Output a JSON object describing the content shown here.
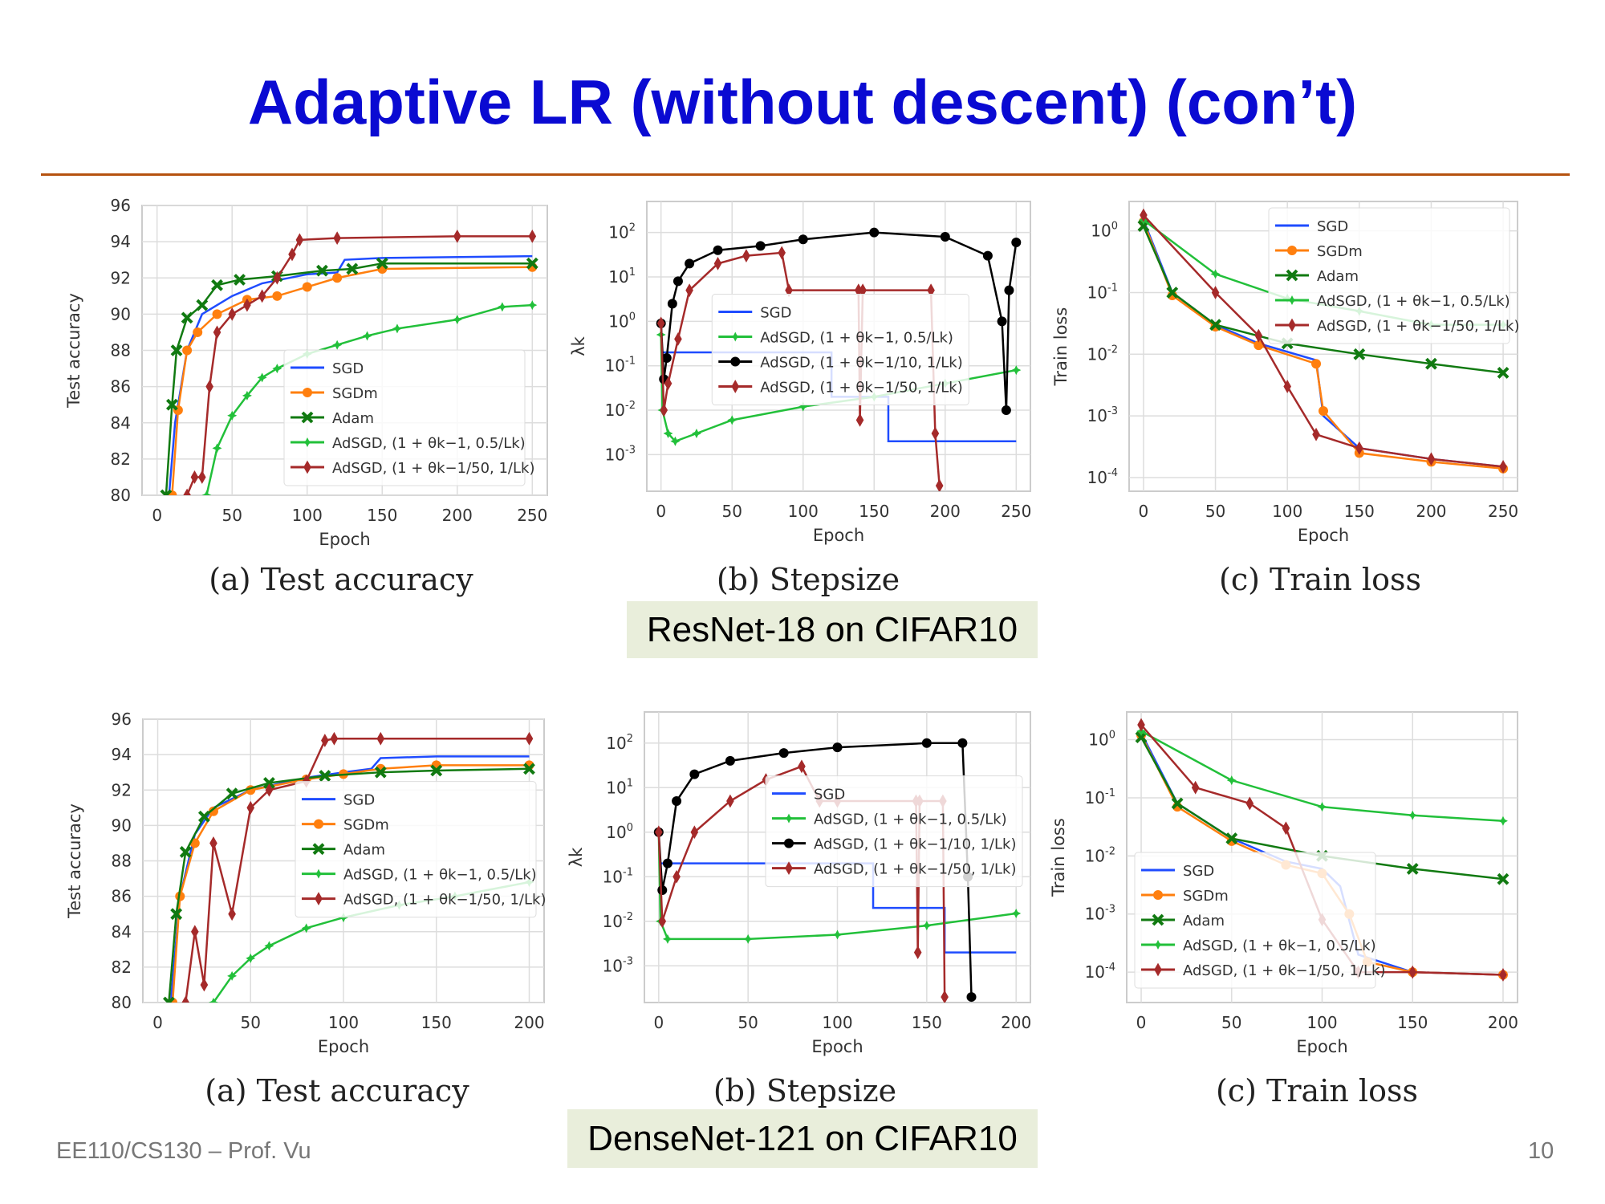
{
  "slide": {
    "title": "Adaptive LR (without descent) (con’t)",
    "footer": "EE110/CS130 – Prof. Vu",
    "page_number": "10",
    "row_labels": [
      "ResNet-18 on CIFAR10",
      "DenseNet-121 on CIFAR10"
    ],
    "captions": [
      "(a) Test accuracy",
      "(b) Stepsize",
      "(c) Train loss",
      "(a) Test accuracy",
      "(b) Stepsize",
      "(c) Train loss"
    ]
  },
  "colors": {
    "title": "#0a0ad2",
    "rule": "#b5520f",
    "label_box": "#e9eedb",
    "SGD": "#1f4cff",
    "SGDm": "#ff7f0e",
    "Adam": "#117a11",
    "AdSGD_05": "#22c03a",
    "AdSGD_10": "#000000",
    "AdSGD_50": "#a52a2a"
  },
  "chart_data": [
    {
      "type": "line",
      "caption": "(a) Test accuracy",
      "xlabel": "Epoch",
      "ylabel": "Test accuracy",
      "xlim": [
        -10,
        260
      ],
      "ylim": [
        80,
        96
      ],
      "xticks": [
        0,
        50,
        100,
        150,
        200,
        250
      ],
      "yticks": [
        80,
        82,
        84,
        86,
        88,
        90,
        92,
        94,
        96
      ],
      "log": false,
      "grid": true,
      "legend": "bottom-right",
      "series": [
        {
          "name": "SGD",
          "color": "#1f4cff",
          "marker": "none",
          "x": [
            8,
            12,
            20,
            30,
            50,
            70,
            100,
            120,
            125,
            150,
            250
          ],
          "y": [
            80,
            84,
            88,
            90,
            91,
            91.7,
            92.2,
            92.3,
            93,
            93.1,
            93.2
          ]
        },
        {
          "name": "SGDm",
          "color": "#ff7f0e",
          "marker": "circle",
          "x": [
            10,
            14,
            20,
            27,
            40,
            60,
            80,
            100,
            120,
            150,
            250
          ],
          "y": [
            80,
            84.7,
            88,
            89,
            90,
            90.8,
            91,
            91.5,
            92,
            92.5,
            92.6
          ]
        },
        {
          "name": "Adam",
          "color": "#117a11",
          "marker": "x",
          "x": [
            6,
            10,
            13,
            20,
            30,
            40,
            55,
            80,
            110,
            130,
            150,
            250
          ],
          "y": [
            80,
            85,
            88,
            89.8,
            90.5,
            91.6,
            91.9,
            92.1,
            92.4,
            92.5,
            92.8,
            92.8
          ]
        },
        {
          "name": "AdSGD, (1 + θk−1, 0.5/Lk)",
          "color": "#22c03a",
          "marker": "star",
          "x": [
            33,
            40,
            50,
            60,
            70,
            80,
            100,
            120,
            140,
            160,
            200,
            230,
            250
          ],
          "y": [
            80,
            82.6,
            84.4,
            85.5,
            86.5,
            87,
            87.8,
            88.3,
            88.8,
            89.2,
            89.7,
            90.4,
            90.5
          ]
        },
        {
          "name": "AdSGD, (1 + θk−1/50, 1/Lk)",
          "color": "#a52a2a",
          "marker": "diamond",
          "x": [
            20,
            25,
            30,
            35,
            40,
            50,
            60,
            70,
            80,
            90,
            95,
            120,
            200,
            250
          ],
          "y": [
            80,
            81,
            81,
            86,
            89,
            90,
            90.5,
            91,
            92,
            93.3,
            94.1,
            94.2,
            94.3,
            94.3
          ]
        }
      ]
    },
    {
      "type": "line",
      "caption": "(b) Stepsize",
      "xlabel": "Epoch",
      "ylabel": "λk",
      "xlim": [
        -10,
        260
      ],
      "ylim": [
        0.00015,
        500
      ],
      "xticks": [
        0,
        50,
        100,
        150,
        200,
        250
      ],
      "yticks": [
        0.001,
        0.01,
        0.1,
        1,
        10,
        100
      ],
      "log": true,
      "grid": true,
      "legend": "center",
      "series": [
        {
          "name": "SGD",
          "color": "#1f4cff",
          "marker": "none",
          "x": [
            0,
            120,
            120,
            160,
            160,
            250
          ],
          "y": [
            0.2,
            0.2,
            0.02,
            0.02,
            0.002,
            0.002
          ]
        },
        {
          "name": "AdSGD, (1 + θk−1, 0.5/Lk)",
          "color": "#22c03a",
          "marker": "star",
          "x": [
            0,
            1,
            5,
            10,
            25,
            50,
            100,
            150,
            200,
            250
          ],
          "y": [
            0.5,
            0.01,
            0.003,
            0.002,
            0.003,
            0.006,
            0.012,
            0.02,
            0.04,
            0.08
          ]
        },
        {
          "name": "AdSGD, (1 + θk−1/10, 1/Lk)",
          "color": "#000000",
          "marker": "circle",
          "x": [
            0,
            2,
            4,
            8,
            12,
            20,
            40,
            70,
            100,
            150,
            200,
            230,
            240,
            243,
            245,
            250
          ],
          "y": [
            0.9,
            0.05,
            0.15,
            2.5,
            8,
            20,
            40,
            50,
            70,
            100,
            80,
            30,
            1,
            0.01,
            5,
            60
          ]
        },
        {
          "name": "AdSGD, (1 + θk−1/50, 1/Lk)",
          "color": "#a52a2a",
          "marker": "diamond",
          "x": [
            0,
            2,
            5,
            12,
            20,
            40,
            60,
            85,
            90,
            139,
            140,
            142,
            190,
            193,
            196
          ],
          "y": [
            0.9,
            0.01,
            0.04,
            0.4,
            5,
            20,
            30,
            35,
            5,
            5,
            0.006,
            5,
            5,
            0.003,
            0.0002
          ]
        }
      ]
    },
    {
      "type": "line",
      "caption": "(c) Train loss",
      "xlabel": "Epoch",
      "ylabel": "Train loss",
      "xlim": [
        -10,
        260
      ],
      "ylim": [
        6e-05,
        3
      ],
      "xticks": [
        0,
        50,
        100,
        150,
        200,
        250
      ],
      "yticks": [
        0.0001,
        0.001,
        0.01,
        0.1,
        1
      ],
      "log": true,
      "grid": true,
      "legend": "top-right",
      "series": [
        {
          "name": "SGD",
          "color": "#1f4cff",
          "marker": "none",
          "x": [
            0,
            20,
            50,
            80,
            120,
            125,
            150,
            200,
            250
          ],
          "y": [
            1.5,
            0.1,
            0.03,
            0.015,
            0.008,
            0.001,
            0.0003,
            0.0002,
            0.00015
          ]
        },
        {
          "name": "SGDm",
          "color": "#ff7f0e",
          "marker": "circle",
          "x": [
            0,
            20,
            50,
            80,
            120,
            125,
            150,
            200,
            250
          ],
          "y": [
            1.4,
            0.09,
            0.028,
            0.014,
            0.007,
            0.0012,
            0.00025,
            0.00018,
            0.00014
          ]
        },
        {
          "name": "Adam",
          "color": "#117a11",
          "marker": "x",
          "x": [
            0,
            20,
            50,
            100,
            150,
            200,
            250
          ],
          "y": [
            1.2,
            0.1,
            0.03,
            0.015,
            0.01,
            0.007,
            0.005
          ]
        },
        {
          "name": "AdSGD, (1 + θk−1, 0.5/Lk)",
          "color": "#22c03a",
          "marker": "star",
          "x": [
            0,
            50,
            100,
            150,
            200,
            250
          ],
          "y": [
            1.5,
            0.2,
            0.08,
            0.05,
            0.03,
            0.03
          ]
        },
        {
          "name": "AdSGD, (1 + θk−1/50, 1/Lk)",
          "color": "#a52a2a",
          "marker": "diamond",
          "x": [
            0,
            50,
            80,
            100,
            120,
            150,
            200,
            250
          ],
          "y": [
            1.8,
            0.1,
            0.02,
            0.003,
            0.0005,
            0.0003,
            0.0002,
            0.00015
          ]
        }
      ]
    },
    {
      "type": "line",
      "caption": "(a) Test accuracy",
      "xlabel": "Epoch",
      "ylabel": "Test accuracy",
      "xlim": [
        -8,
        208
      ],
      "ylim": [
        80,
        96
      ],
      "xticks": [
        0,
        50,
        100,
        150,
        200
      ],
      "yticks": [
        80,
        82,
        84,
        86,
        88,
        90,
        92,
        94,
        96
      ],
      "log": false,
      "grid": true,
      "legend": "center-right",
      "series": [
        {
          "name": "SGD",
          "color": "#1f4cff",
          "marker": "none",
          "x": [
            7,
            12,
            20,
            30,
            50,
            80,
            100,
            115,
            120,
            150,
            200
          ],
          "y": [
            80,
            86,
            89.5,
            91,
            92,
            92.7,
            93,
            93.2,
            93.8,
            93.9,
            93.9
          ]
        },
        {
          "name": "SGDm",
          "color": "#ff7f0e",
          "marker": "circle",
          "x": [
            8,
            12,
            20,
            30,
            50,
            80,
            100,
            120,
            150,
            200
          ],
          "y": [
            80,
            86,
            89,
            90.8,
            92,
            92.6,
            92.9,
            93.2,
            93.4,
            93.4
          ]
        },
        {
          "name": "Adam",
          "color": "#117a11",
          "marker": "x",
          "x": [
            6,
            10,
            15,
            25,
            40,
            60,
            90,
            120,
            150,
            200
          ],
          "y": [
            80,
            85,
            88.5,
            90.5,
            91.8,
            92.4,
            92.8,
            93,
            93.1,
            93.2
          ]
        },
        {
          "name": "AdSGD, (1 + θk−1, 0.5/Lk)",
          "color": "#22c03a",
          "marker": "star",
          "x": [
            30,
            40,
            50,
            60,
            80,
            100,
            130,
            160,
            200
          ],
          "y": [
            80,
            81.5,
            82.5,
            83.2,
            84.2,
            84.8,
            85.5,
            86,
            86.8
          ]
        },
        {
          "name": "AdSGD, (1 + θk−1/50, 1/Lk)",
          "color": "#a52a2a",
          "marker": "diamond",
          "x": [
            15,
            20,
            25,
            30,
            40,
            50,
            60,
            80,
            90,
            95,
            120,
            200
          ],
          "y": [
            80,
            84,
            81,
            89,
            85,
            91,
            92,
            92.5,
            94.8,
            94.9,
            94.9,
            94.9
          ]
        }
      ]
    },
    {
      "type": "line",
      "caption": "(b) Stepsize",
      "xlabel": "Epoch",
      "ylabel": "λk",
      "xlim": [
        -8,
        208
      ],
      "ylim": [
        0.00015,
        500
      ],
      "xticks": [
        0,
        50,
        100,
        150,
        200
      ],
      "yticks": [
        0.001,
        0.01,
        0.1,
        1,
        10,
        100
      ],
      "log": true,
      "grid": true,
      "legend": "center-right",
      "series": [
        {
          "name": "SGD",
          "color": "#1f4cff",
          "marker": "none",
          "x": [
            0,
            120,
            120,
            160,
            160,
            200
          ],
          "y": [
            0.2,
            0.2,
            0.02,
            0.02,
            0.002,
            0.002
          ]
        },
        {
          "name": "AdSGD, (1 + θk−1, 0.5/Lk)",
          "color": "#22c03a",
          "marker": "star",
          "x": [
            0,
            1,
            5,
            50,
            100,
            150,
            200
          ],
          "y": [
            1,
            0.01,
            0.004,
            0.004,
            0.005,
            0.008,
            0.015
          ]
        },
        {
          "name": "AdSGD, (1 + θk−1/10, 1/Lk)",
          "color": "#000000",
          "marker": "circle",
          "x": [
            0,
            2,
            5,
            10,
            20,
            40,
            70,
            100,
            150,
            170,
            173,
            175
          ],
          "y": [
            1,
            0.05,
            0.2,
            5,
            20,
            40,
            60,
            80,
            100,
            100,
            0.1,
            0.0002
          ]
        },
        {
          "name": "AdSGD, (1 + θk−1/50, 1/Lk)",
          "color": "#a52a2a",
          "marker": "diamond",
          "x": [
            0,
            2,
            10,
            20,
            40,
            60,
            80,
            90,
            100,
            144,
            145,
            146,
            159,
            160
          ],
          "y": [
            1,
            0.01,
            0.1,
            1,
            5,
            15,
            30,
            5,
            5,
            5,
            0.002,
            5,
            5,
            0.0002
          ]
        }
      ]
    },
    {
      "type": "line",
      "caption": "(c) Train loss",
      "xlabel": "Epoch",
      "ylabel": "Train loss",
      "xlim": [
        -8,
        208
      ],
      "ylim": [
        3e-05,
        3
      ],
      "xticks": [
        0,
        50,
        100,
        150,
        200
      ],
      "yticks": [
        0.0001,
        0.001,
        0.01,
        0.1,
        1
      ],
      "log": true,
      "grid": true,
      "legend": "bottom-left",
      "series": [
        {
          "name": "SGD",
          "color": "#1f4cff",
          "marker": "none",
          "x": [
            0,
            20,
            50,
            80,
            100,
            110,
            120,
            150,
            200
          ],
          "y": [
            1.3,
            0.08,
            0.02,
            0.008,
            0.006,
            0.003,
            0.0002,
            0.0001,
            9e-05
          ]
        },
        {
          "name": "SGDm",
          "color": "#ff7f0e",
          "marker": "circle",
          "x": [
            0,
            20,
            50,
            80,
            100,
            115,
            125,
            150,
            200
          ],
          "y": [
            1.2,
            0.07,
            0.018,
            0.007,
            0.005,
            0.001,
            0.00015,
            0.0001,
            9e-05
          ]
        },
        {
          "name": "Adam",
          "color": "#117a11",
          "marker": "x",
          "x": [
            0,
            20,
            50,
            100,
            150,
            200
          ],
          "y": [
            1.1,
            0.08,
            0.02,
            0.01,
            0.006,
            0.004
          ]
        },
        {
          "name": "AdSGD, (1 + θk−1, 0.5/Lk)",
          "color": "#22c03a",
          "marker": "star",
          "x": [
            0,
            50,
            100,
            150,
            200
          ],
          "y": [
            1.4,
            0.2,
            0.07,
            0.05,
            0.04
          ]
        },
        {
          "name": "AdSGD, (1 + θk−1/50, 1/Lk)",
          "color": "#a52a2a",
          "marker": "diamond",
          "x": [
            0,
            30,
            60,
            80,
            100,
            120,
            150,
            200
          ],
          "y": [
            1.8,
            0.15,
            0.08,
            0.03,
            0.0008,
            0.0001,
            0.0001,
            9e-05
          ]
        }
      ]
    }
  ]
}
